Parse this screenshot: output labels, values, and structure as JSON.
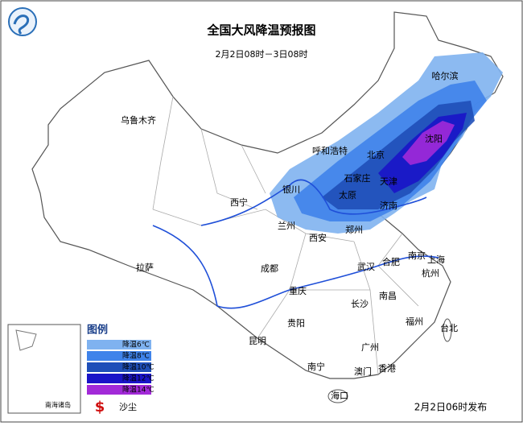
{
  "header": {
    "title": "全国大风降温预报图",
    "subtitle": "2月2日08时－3日08时"
  },
  "cities": [
    "哈尔滨",
    "乌鲁木齐",
    "呼和浩特",
    "北京",
    "沈阳",
    "银川",
    "石家庄",
    "天津",
    "西宁",
    "太原",
    "济南",
    "兰州",
    "郑州",
    "西安",
    "拉萨",
    "成都",
    "合肥",
    "南京",
    "上海",
    "武汉",
    "杭州",
    "重庆",
    "南昌",
    "长沙",
    "贵阳",
    "福州",
    "昆明",
    "台北",
    "广州",
    "南宁",
    "香港",
    "澳门",
    "海口"
  ],
  "legend": {
    "title": "图例",
    "items": [
      {
        "label": "降温6℃",
        "color": "#7fb2f0"
      },
      {
        "label": "降温8℃",
        "color": "#3f83ea"
      },
      {
        "label": "降温10℃",
        "color": "#1f4fb8"
      },
      {
        "label": "降温12℃",
        "color": "#1a14c8"
      },
      {
        "label": "降温14℃",
        "color": "#a22ad8"
      }
    ],
    "dust": {
      "symbol": "$",
      "label": "沙尘"
    }
  },
  "inset": {
    "label": "南海诸岛"
  },
  "footer": {
    "issued": "2月2日06时发布"
  }
}
